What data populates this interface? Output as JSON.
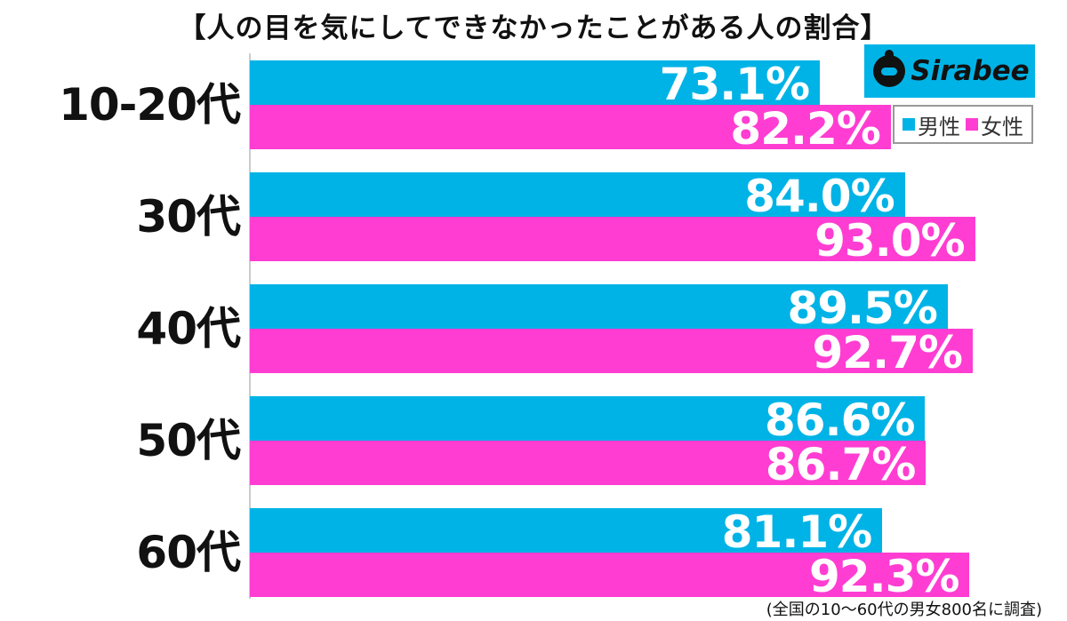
{
  "title": "【人の目を気にしてできなかったことがある人の割合】",
  "logo": {
    "text": "Sirabee"
  },
  "legend": [
    {
      "label": "男性",
      "color": "#00b3e6"
    },
    {
      "label": "女性",
      "color": "#ff3dd2"
    }
  ],
  "footnote": "(全国の10〜60代の男女800名に調査)",
  "chart_data": {
    "type": "bar",
    "orientation": "horizontal",
    "categories": [
      "10-20代",
      "30代",
      "40代",
      "50代",
      "60代"
    ],
    "series": [
      {
        "name": "男性",
        "values": [
          73.1,
          84.0,
          89.5,
          86.6,
          81.1
        ],
        "labels": [
          "73.1%",
          "84.0%",
          "89.5%",
          "86.6%",
          "81.1%"
        ],
        "color": "#00b3e6"
      },
      {
        "name": "女性",
        "values": [
          82.2,
          93.0,
          92.7,
          86.7,
          92.3
        ],
        "labels": [
          "82.2%",
          "93.0%",
          "92.7%",
          "86.7%",
          "92.3%"
        ],
        "color": "#ff3dd2"
      }
    ],
    "xlim": [
      0,
      100
    ],
    "grid": false,
    "legend_position": "top-right"
  }
}
